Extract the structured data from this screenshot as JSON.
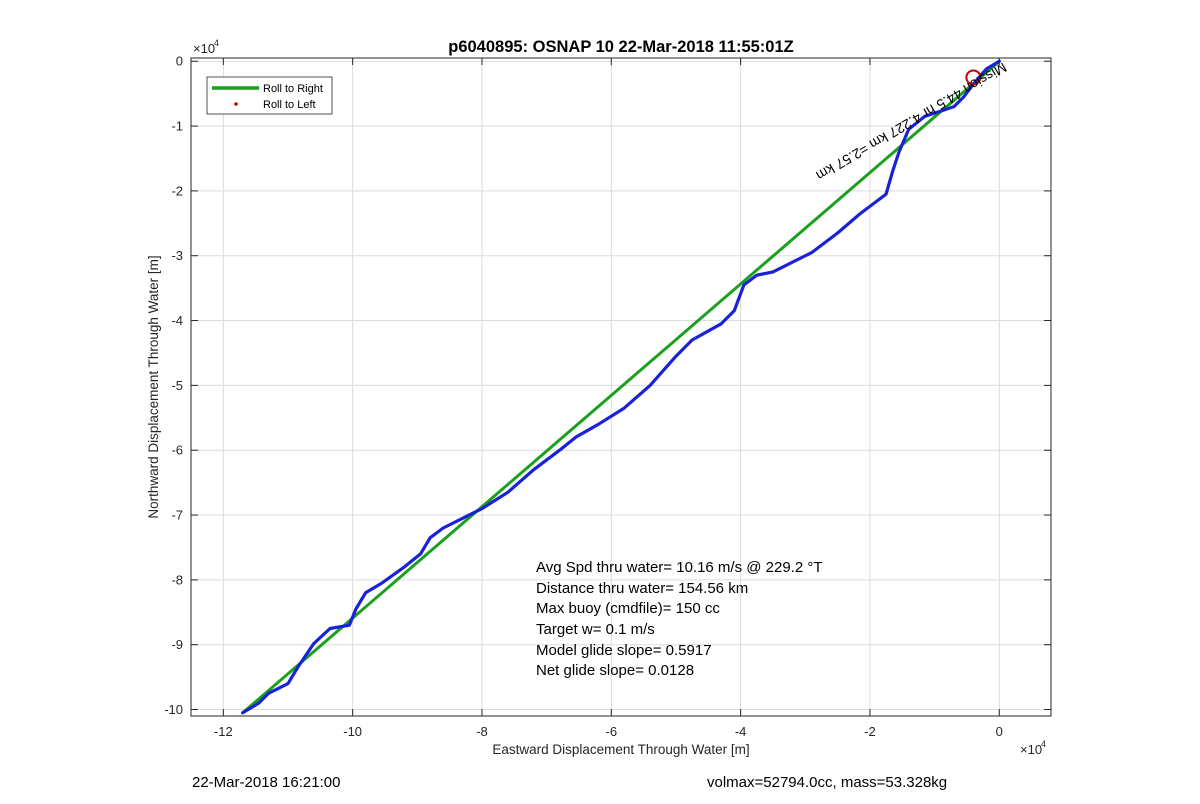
{
  "chart_data": {
    "type": "line",
    "title": "p6040895: OSNAP 10 22-Mar-2018 11:55:01Z",
    "xlabel": "Eastward Displacement Through Water [m]",
    "ylabel": "Northward Displacement Through Water [m]",
    "x_exponent_label": "×10",
    "y_exponent_label": "×10",
    "exponent_power": "4",
    "xlim": [
      -12.5,
      0.8
    ],
    "ylim": [
      -10.1,
      0.05
    ],
    "xticks": [
      -12,
      -10,
      -8,
      -6,
      -4,
      -2,
      0
    ],
    "yticks": [
      0,
      -1,
      -2,
      -3,
      -4,
      -5,
      -6,
      -7,
      -8,
      -9,
      -10
    ],
    "grid": true,
    "legend": {
      "placement": "top-left",
      "entries": [
        {
          "label": "Roll to Right",
          "color": "#1aa01a",
          "marker": "line"
        },
        {
          "label": "Roll to Left",
          "color": "#d00000",
          "marker": "dot"
        }
      ]
    },
    "series": [
      {
        "name": "Roll to Right",
        "color": "#1aa01a",
        "x": [
          -11.7,
          -0.0
        ],
        "y": [
          -10.05,
          0.0
        ]
      },
      {
        "color": "#1a22d8",
        "x": [
          -11.7,
          -11.45,
          -11.3,
          -11.0,
          -10.85,
          -10.6,
          -10.35,
          -10.05,
          -9.95,
          -9.8,
          -9.55,
          -9.2,
          -8.95,
          -8.8,
          -8.6,
          -8.3,
          -8.0,
          -7.6,
          -7.2,
          -6.8,
          -6.55,
          -6.2,
          -5.8,
          -5.4,
          -5.0,
          -4.75,
          -4.3,
          -4.1,
          -3.95,
          -3.75,
          -3.5,
          -3.2,
          -2.9,
          -2.5,
          -2.15,
          -1.95,
          -1.75,
          -1.65,
          -1.55,
          -1.4,
          -1.15,
          -1.0,
          -0.7,
          -0.55,
          -0.4,
          -0.2,
          0.0
        ],
        "y": [
          -10.05,
          -9.9,
          -9.75,
          -9.6,
          -9.35,
          -8.98,
          -8.75,
          -8.7,
          -8.45,
          -8.2,
          -8.05,
          -7.8,
          -7.6,
          -7.35,
          -7.2,
          -7.05,
          -6.9,
          -6.65,
          -6.3,
          -6.0,
          -5.8,
          -5.6,
          -5.35,
          -5.0,
          -4.55,
          -4.3,
          -4.05,
          -3.85,
          -3.45,
          -3.3,
          -3.25,
          -3.1,
          -2.95,
          -2.65,
          -2.35,
          -2.2,
          -2.05,
          -1.7,
          -1.4,
          -1.05,
          -0.85,
          -0.8,
          -0.7,
          -0.55,
          -0.35,
          -0.12,
          0.0
        ]
      }
    ],
    "annotations": {
      "track_label": "Mission 44.5 hr 4.227 km =2.57 km",
      "stats": [
        "Avg Spd thru water= 10.16 m/s @ 229.2 °T",
        "Distance thru water= 154.56 km",
        "Max buoy (cmdfile)= 150 cc",
        "Target w= 0.1 m/s",
        "Model glide slope= 0.5917",
        "Net glide slope= 0.0128"
      ]
    }
  },
  "footer": {
    "timestamp": "22-Mar-2018 16:21:00",
    "summary": "volmax=52794.0cc, mass=53.328kg"
  }
}
